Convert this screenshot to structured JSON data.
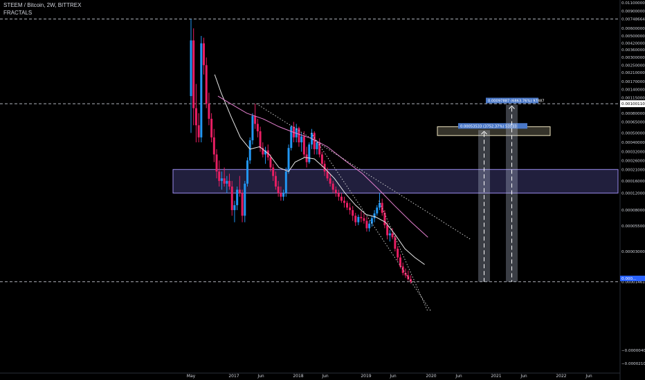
{
  "header": {
    "symbol_line": "STEEM / Bitcoin, 2W, BITTREX",
    "indicator": "FRACTALS"
  },
  "chart_data": {
    "type": "candlestick",
    "title": "STEEM / Bitcoin, 2W, BITTREX",
    "y_scale": "log",
    "ylim": [
      2.1e-06,
      0.011
    ],
    "price_axis_ticks": [
      "0.01100000",
      "0.00900000",
      "0.00748664",
      "0.00600000",
      "0.00500000",
      "0.00420000",
      "0.00360000",
      "0.00300000",
      "0.00250000",
      "0.00210000",
      "0.00170000",
      "0.00140000",
      "0.00115000",
      "0.00100110",
      "0.00080000",
      "0.00065000",
      "0.00050000",
      "0.00040000",
      "0.00032000",
      "0.00026000",
      "0.00021000",
      "0.00016000",
      "0.00012000",
      "0.00008000",
      "0.00005500",
      "0.00003000",
      "0.00001461",
      "−0.00000400",
      "−0.00002100"
    ],
    "time_axis_labels": [
      "May",
      "2017",
      "Jun",
      "2018",
      "Jun",
      "2019",
      "Jun",
      "2020",
      "Jun",
      "2021",
      "Jun",
      "2022",
      "Jun"
    ],
    "horizontal_levels": [
      0.00748664,
      0.0010011,
      1.461e-05
    ],
    "support_zone": {
      "low": 0.00012,
      "high": 0.00021
    },
    "target_zone": {
      "low": 0.00047,
      "high": 0.00058
    },
    "measure_labels": [
      {
        "text": "0.00053533 (3752.37%) 53533",
        "value": 0.00053533
      },
      {
        "text": "0.00097887 (6863.76%) 97887",
        "value": 0.00097887
      }
    ],
    "current_price_tag": "0.000...",
    "colors": {
      "up": "#2196f3",
      "down": "#e91e63",
      "ma_fast": "#e8e8e8",
      "ma_slow": "#e580d0",
      "zone": "#9c8cf0",
      "target": "#f0e6c0",
      "background": "#000000"
    }
  }
}
